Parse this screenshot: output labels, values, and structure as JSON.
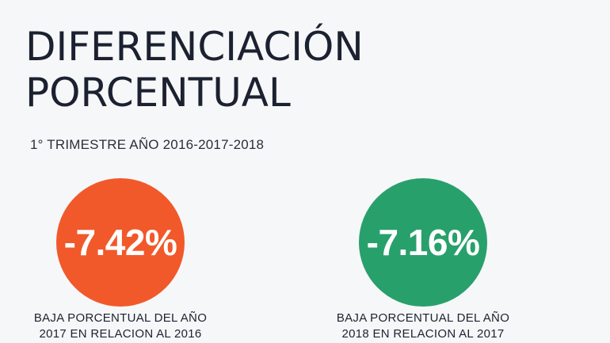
{
  "title": {
    "line1": "DIFERENCIACIÓN",
    "line2": "PORCENTUAL"
  },
  "subtitle": "1° TRIMESTRE AÑO 2016-2017-2018",
  "stats": [
    {
      "value": "-7.42%",
      "caption_line1": "BAJA PORCENTUAL DEL AÑO",
      "caption_line2": "2017 EN RELACION AL 2016",
      "color": "#f1592a"
    },
    {
      "value": "-7.16%",
      "caption_line1": "BAJA PORCENTUAL DEL AÑO",
      "caption_line2": "2018 EN RELACION AL 2017",
      "color": "#28a06c"
    }
  ]
}
